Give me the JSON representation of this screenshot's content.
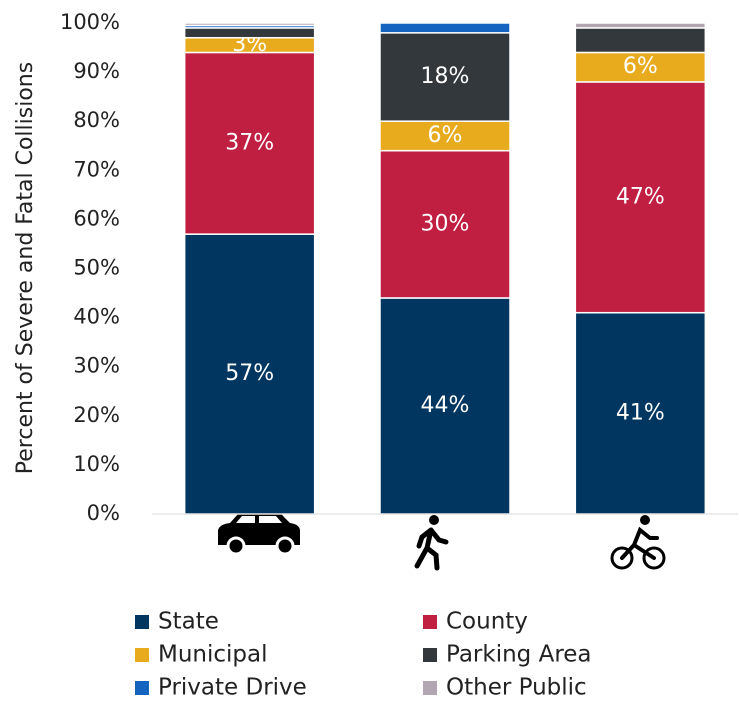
{
  "chart_data": {
    "type": "stacked_bar",
    "ylabel": "Percent of Severe and Fatal Collisions",
    "categories": [
      null,
      null,
      null
    ],
    "ylim": [
      0,
      100
    ],
    "yticks": [
      {
        "value": 0,
        "label": "0%"
      },
      {
        "value": 10,
        "label": "10%"
      },
      {
        "value": 20,
        "label": "20%"
      },
      {
        "value": 30,
        "label": "30%"
      },
      {
        "value": 40,
        "label": "40%"
      },
      {
        "value": 50,
        "label": "50%"
      },
      {
        "value": 60,
        "label": "60%"
      },
      {
        "value": 70,
        "label": "70%"
      },
      {
        "value": 80,
        "label": "80%"
      },
      {
        "value": 90,
        "label": "90%"
      },
      {
        "value": 100,
        "label": "100%"
      }
    ],
    "grid": false,
    "series": [
      {
        "name": "State",
        "color": "#003660",
        "values": [
          57,
          44,
          41
        ],
        "value_labels": [
          "57%",
          "44%",
          "41%"
        ]
      },
      {
        "name": "County",
        "color": "#c01f41",
        "values": [
          37,
          30,
          47
        ],
        "value_labels": [
          "37%",
          "30%",
          "47%"
        ]
      },
      {
        "name": "Municipal",
        "color": "#e8ab1e",
        "values": [
          3,
          6,
          6
        ],
        "value_labels": [
          "3%",
          "6%",
          "6%"
        ]
      },
      {
        "name": "Parking Area",
        "color": "#33383c",
        "values": [
          2,
          18,
          5
        ],
        "value_labels": [
          null,
          "18%",
          null
        ]
      },
      {
        "name": "Private Drive",
        "color": "#1565c0",
        "values": [
          0.5,
          2,
          0
        ],
        "value_labels": [
          null,
          null,
          null
        ]
      },
      {
        "name": "Other Public",
        "color": "#b3a6b3",
        "values": [
          0.5,
          0,
          1
        ],
        "value_labels": [
          null,
          null,
          null
        ]
      }
    ]
  }
}
